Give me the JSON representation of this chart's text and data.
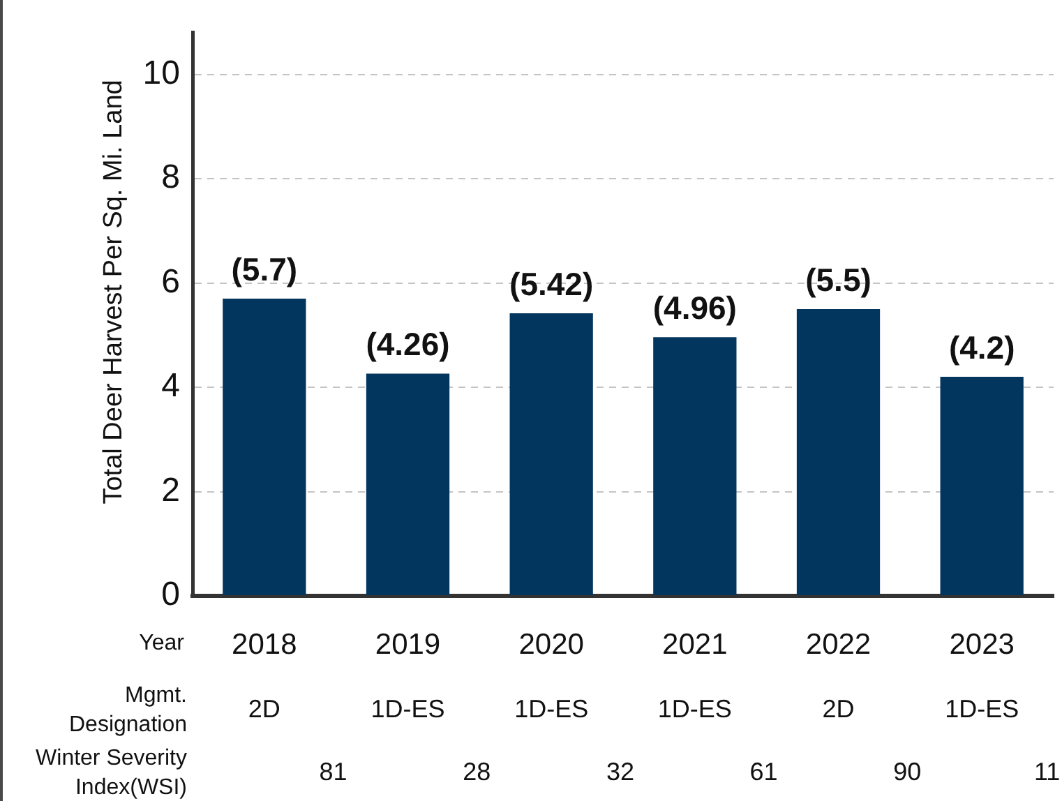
{
  "chart_data": {
    "type": "bar",
    "categories": [
      "2018",
      "2019",
      "2020",
      "2021",
      "2022",
      "2023"
    ],
    "values": [
      5.7,
      4.26,
      5.42,
      4.96,
      5.5,
      4.2
    ],
    "color": "#03365f",
    "value_labels": [
      "(5.7)",
      "(4.26)",
      "(5.42)",
      "(4.96)",
      "(5.5)",
      "(4.2)"
    ],
    "xlabel": "Year",
    "ylabel": "Total Deer Harvest Per Sq. Mi. Land",
    "ylim": [
      0,
      10.8
    ],
    "yticks": [
      0,
      2,
      4,
      6,
      8,
      10
    ],
    "grid": "y",
    "annotations": [
      "Mgmt. Designation",
      "2D",
      "1D-ES",
      "1D-ES",
      "1D-ES",
      "2D",
      "1D-ES",
      "Winter Severity Index(WSI)",
      "81",
      "28",
      "32",
      "61",
      "90",
      "11"
    ]
  }
}
